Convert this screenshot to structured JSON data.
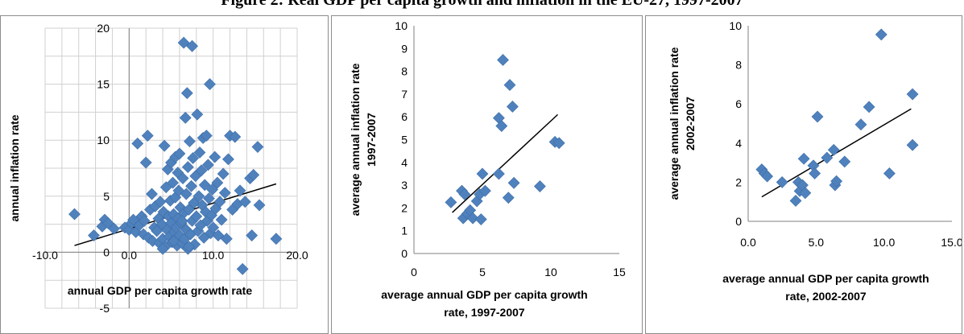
{
  "figure_title": "Figure 2: Real GDP per capita growth and inflation in the EU-27, 1997-2007",
  "chart_data": [
    {
      "type": "scatter",
      "panel": "p1",
      "xlabel": [
        "annual GDP per capita growth rate"
      ],
      "ylabel": [
        "annual inflation rate"
      ],
      "xlim": [
        -10,
        20
      ],
      "ylim": [
        -5,
        20
      ],
      "xticks": [
        -10,
        0,
        10,
        20
      ],
      "xtick_labels": [
        "-10.0",
        "0.0",
        "10.0",
        "20.0"
      ],
      "yticks": [
        -5,
        0,
        5,
        10,
        15,
        20
      ],
      "ytick_labels": [
        "-5",
        "0",
        "5",
        "10",
        "15",
        "20"
      ],
      "grid": true,
      "trendline": {
        "x": [
          -6.5,
          17.5
        ],
        "y": [
          0.6,
          6.1
        ]
      },
      "points": [
        [
          -6.5,
          3.4
        ],
        [
          -4.2,
          1.5
        ],
        [
          -3.2,
          2.3
        ],
        [
          -2.9,
          2.9
        ],
        [
          -2.5,
          2.6
        ],
        [
          -1.8,
          2.1
        ],
        [
          -0.5,
          2.2
        ],
        [
          0.0,
          2.0
        ],
        [
          0.3,
          2.6
        ],
        [
          0.5,
          2.9
        ],
        [
          0.8,
          1.8
        ],
        [
          1.0,
          9.7
        ],
        [
          1.2,
          2.4
        ],
        [
          1.5,
          3.2
        ],
        [
          1.7,
          1.6
        ],
        [
          1.8,
          2.8
        ],
        [
          2.0,
          8.0
        ],
        [
          2.2,
          10.4
        ],
        [
          2.3,
          1.3
        ],
        [
          2.5,
          3.8
        ],
        [
          2.7,
          5.2
        ],
        [
          2.8,
          1.0
        ],
        [
          3.0,
          2.2
        ],
        [
          3.1,
          4.1
        ],
        [
          3.3,
          1.9
        ],
        [
          3.5,
          3.0
        ],
        [
          3.6,
          0.8
        ],
        [
          3.7,
          4.5
        ],
        [
          3.9,
          2.5
        ],
        [
          4.0,
          1.2
        ],
        [
          4.1,
          3.6
        ],
        [
          4.2,
          9.5
        ],
        [
          4.3,
          0.5
        ],
        [
          4.4,
          5.8
        ],
        [
          4.5,
          2.0
        ],
        [
          4.6,
          7.4
        ],
        [
          4.7,
          3.2
        ],
        [
          4.8,
          1.4
        ],
        [
          4.9,
          4.6
        ],
        [
          5.0,
          8.0
        ],
        [
          5.0,
          2.6
        ],
        [
          5.1,
          0.9
        ],
        [
          5.2,
          6.2
        ],
        [
          5.3,
          3.4
        ],
        [
          5.4,
          1.8
        ],
        [
          5.5,
          8.5
        ],
        [
          5.5,
          4.9
        ],
        [
          5.6,
          2.2
        ],
        [
          5.7,
          0.6
        ],
        [
          5.8,
          7.1
        ],
        [
          5.8,
          3.0
        ],
        [
          5.9,
          5.5
        ],
        [
          6.0,
          1.5
        ],
        [
          6.0,
          8.8
        ],
        [
          6.1,
          4.0
        ],
        [
          6.2,
          2.6
        ],
        [
          6.3,
          0.8
        ],
        [
          6.4,
          6.6
        ],
        [
          6.5,
          18.7
        ],
        [
          6.5,
          3.5
        ],
        [
          6.6,
          1.2
        ],
        [
          6.7,
          12.0
        ],
        [
          6.8,
          5.2
        ],
        [
          6.8,
          2.0
        ],
        [
          6.9,
          14.2
        ],
        [
          7.0,
          7.6
        ],
        [
          7.0,
          0.3
        ],
        [
          7.1,
          3.8
        ],
        [
          7.2,
          9.9
        ],
        [
          7.3,
          1.6
        ],
        [
          7.4,
          5.9
        ],
        [
          7.5,
          18.4
        ],
        [
          7.5,
          2.8
        ],
        [
          7.6,
          8.4
        ],
        [
          7.7,
          4.4
        ],
        [
          7.8,
          0.7
        ],
        [
          7.9,
          6.8
        ],
        [
          8.0,
          3.2
        ],
        [
          8.1,
          12.3
        ],
        [
          8.2,
          1.9
        ],
        [
          8.3,
          5.0
        ],
        [
          8.4,
          8.9
        ],
        [
          8.5,
          2.4
        ],
        [
          8.6,
          7.3
        ],
        [
          8.7,
          4.2
        ],
        [
          8.8,
          10.2
        ],
        [
          8.9,
          1.3
        ],
        [
          9.0,
          6.0
        ],
        [
          9.1,
          3.6
        ],
        [
          9.2,
          10.4
        ],
        [
          9.3,
          2.8
        ],
        [
          9.4,
          7.8
        ],
        [
          9.5,
          4.8
        ],
        [
          9.6,
          15.0
        ],
        [
          9.7,
          1.7
        ],
        [
          9.8,
          3.3
        ],
        [
          9.9,
          5.6
        ],
        [
          10.0,
          2.2
        ],
        [
          10.2,
          8.5
        ],
        [
          10.3,
          3.9
        ],
        [
          10.5,
          6.2
        ],
        [
          10.6,
          1.5
        ],
        [
          10.8,
          4.5
        ],
        [
          11.0,
          2.9
        ],
        [
          11.2,
          7.0
        ],
        [
          11.4,
          5.3
        ],
        [
          11.6,
          1.2
        ],
        [
          11.8,
          8.3
        ],
        [
          12.0,
          10.4
        ],
        [
          12.3,
          3.8
        ],
        [
          12.6,
          10.3
        ],
        [
          12.9,
          4.3
        ],
        [
          13.2,
          5.5
        ],
        [
          13.5,
          -1.5
        ],
        [
          13.8,
          4.5
        ],
        [
          14.4,
          6.6
        ],
        [
          14.6,
          1.5
        ],
        [
          14.8,
          6.9
        ],
        [
          15.3,
          9.4
        ],
        [
          15.5,
          4.2
        ],
        [
          17.5,
          1.2
        ],
        [
          5.3,
          1.0
        ],
        [
          4.0,
          0.3
        ],
        [
          6.3,
          2.8
        ],
        [
          7.1,
          0.5
        ]
      ]
    },
    {
      "type": "scatter",
      "panel": "p2",
      "xlabel": [
        "average annual GDP per capita growth",
        "rate, 1997-2007"
      ],
      "ylabel": [
        "average annual inflation rate",
        "1997-2007"
      ],
      "xlim": [
        0,
        15
      ],
      "ylim": [
        0,
        10
      ],
      "xticks": [
        0,
        5,
        10,
        15
      ],
      "xtick_labels": [
        "0",
        "5",
        "10",
        "15"
      ],
      "yticks": [
        0,
        1,
        2,
        3,
        4,
        5,
        6,
        7,
        8,
        9,
        10
      ],
      "ytick_labels": [
        "0",
        "1",
        "2",
        "3",
        "4",
        "5",
        "6",
        "7",
        "8",
        "9",
        "10"
      ],
      "grid": false,
      "trendline": {
        "x": [
          2.8,
          10.5
        ],
        "y": [
          1.8,
          6.1
        ]
      },
      "points": [
        [
          2.7,
          2.25
        ],
        [
          3.5,
          2.75
        ],
        [
          3.6,
          1.55
        ],
        [
          3.7,
          2.6
        ],
        [
          3.9,
          1.75
        ],
        [
          4.1,
          1.9
        ],
        [
          4.3,
          1.55
        ],
        [
          4.6,
          2.3
        ],
        [
          4.8,
          2.6
        ],
        [
          4.9,
          1.5
        ],
        [
          5.0,
          3.5
        ],
        [
          5.2,
          2.75
        ],
        [
          6.2,
          3.5
        ],
        [
          6.2,
          5.95
        ],
        [
          6.4,
          5.6
        ],
        [
          6.5,
          8.5
        ],
        [
          6.9,
          2.45
        ],
        [
          7.0,
          7.4
        ],
        [
          7.2,
          6.45
        ],
        [
          7.3,
          3.1
        ],
        [
          9.2,
          2.95
        ],
        [
          10.3,
          4.9
        ],
        [
          10.6,
          4.85
        ]
      ]
    },
    {
      "type": "scatter",
      "panel": "p3",
      "xlabel": [
        "average annual GDP per capita growth",
        "rate, 2002-2007"
      ],
      "ylabel": [
        "average annual inflation rate",
        "2002-2007"
      ],
      "xlim": [
        0,
        15
      ],
      "ylim": [
        0,
        10
      ],
      "xticks": [
        0,
        5,
        10,
        15
      ],
      "xtick_labels": [
        "0.0",
        "5.0",
        "10.0",
        "15.0"
      ],
      "yticks": [
        0,
        2,
        4,
        6,
        8,
        10
      ],
      "ytick_labels": [
        "0",
        "2",
        "4",
        "6",
        "8",
        "10"
      ],
      "grid": false,
      "trendline": {
        "x": [
          1.0,
          12.0
        ],
        "y": [
          1.25,
          5.75
        ]
      },
      "points": [
        [
          1.0,
          2.65
        ],
        [
          1.2,
          2.45
        ],
        [
          1.4,
          2.3
        ],
        [
          2.5,
          2.0
        ],
        [
          3.5,
          1.05
        ],
        [
          3.7,
          2.0
        ],
        [
          3.8,
          1.55
        ],
        [
          4.0,
          1.85
        ],
        [
          4.1,
          3.2
        ],
        [
          4.2,
          1.45
        ],
        [
          4.8,
          2.85
        ],
        [
          4.9,
          2.45
        ],
        [
          5.1,
          5.35
        ],
        [
          5.8,
          3.25
        ],
        [
          6.3,
          3.65
        ],
        [
          6.4,
          1.85
        ],
        [
          6.5,
          2.05
        ],
        [
          7.1,
          3.05
        ],
        [
          8.3,
          4.95
        ],
        [
          8.9,
          5.85
        ],
        [
          9.8,
          9.55
        ],
        [
          10.4,
          2.45
        ],
        [
          12.1,
          6.5
        ],
        [
          12.1,
          3.9
        ]
      ]
    }
  ]
}
